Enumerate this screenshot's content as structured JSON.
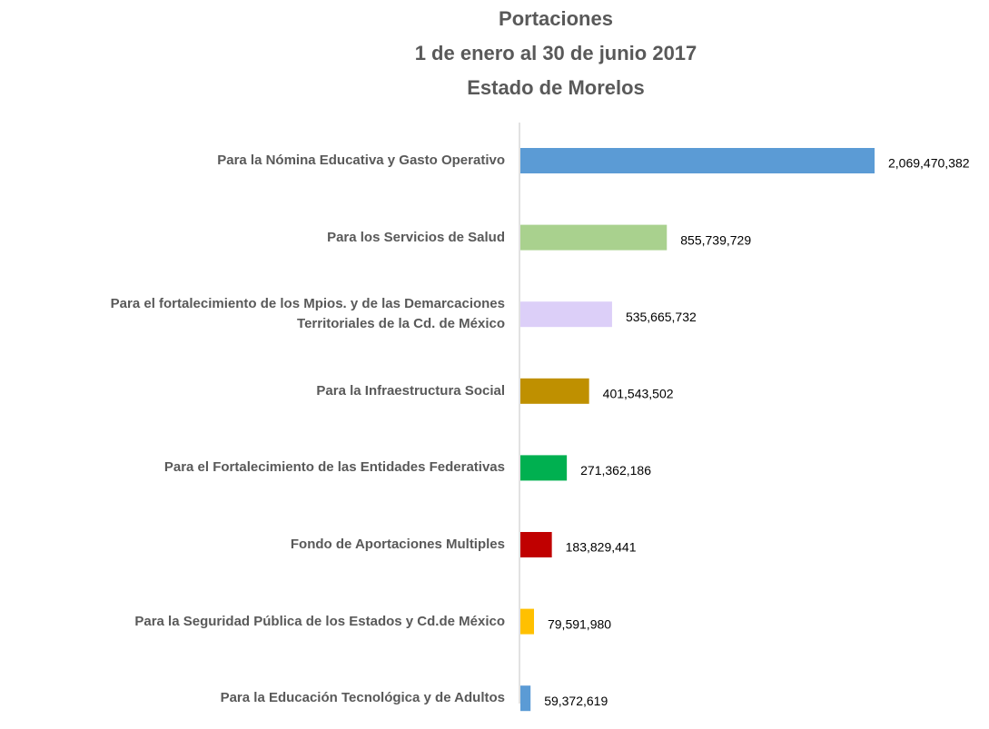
{
  "chart_data": {
    "type": "bar",
    "orientation": "horizontal",
    "title": [
      "Portaciones",
      "1 de enero al 30 de junio 2017",
      "Estado de Morelos"
    ],
    "categories": [
      "Para la Nómina Educativa y Gasto Operativo",
      "Para los Servicios de Salud",
      "Para el fortalecimiento de los Mpios. y de las Demarcaciones\nTerritoriales de la Cd. de México",
      "Para la Infraestructura Social",
      "Para el Fortalecimiento de las Entidades Federativas",
      "Fondo de Aportaciones Multiples",
      "Para la Seguridad Pública de los Estados y Cd.de México",
      "Para la Educación Tecnológica y de Adultos"
    ],
    "values": [
      2069470382,
      855739729,
      535665732,
      401543502,
      271362186,
      183829441,
      79591980,
      59372619
    ],
    "value_labels": [
      "2,069,470,382",
      "855,739,729",
      "535,665,732",
      "401,543,502",
      "271,362,186",
      "183,829,441",
      "79,591,980",
      "59,372,619"
    ],
    "colors": [
      "#5b9bd5",
      "#a9d18e",
      "#dccff8",
      "#bf9000",
      "#00b050",
      "#c00000",
      "#ffc000",
      "#5b9bd5"
    ]
  }
}
